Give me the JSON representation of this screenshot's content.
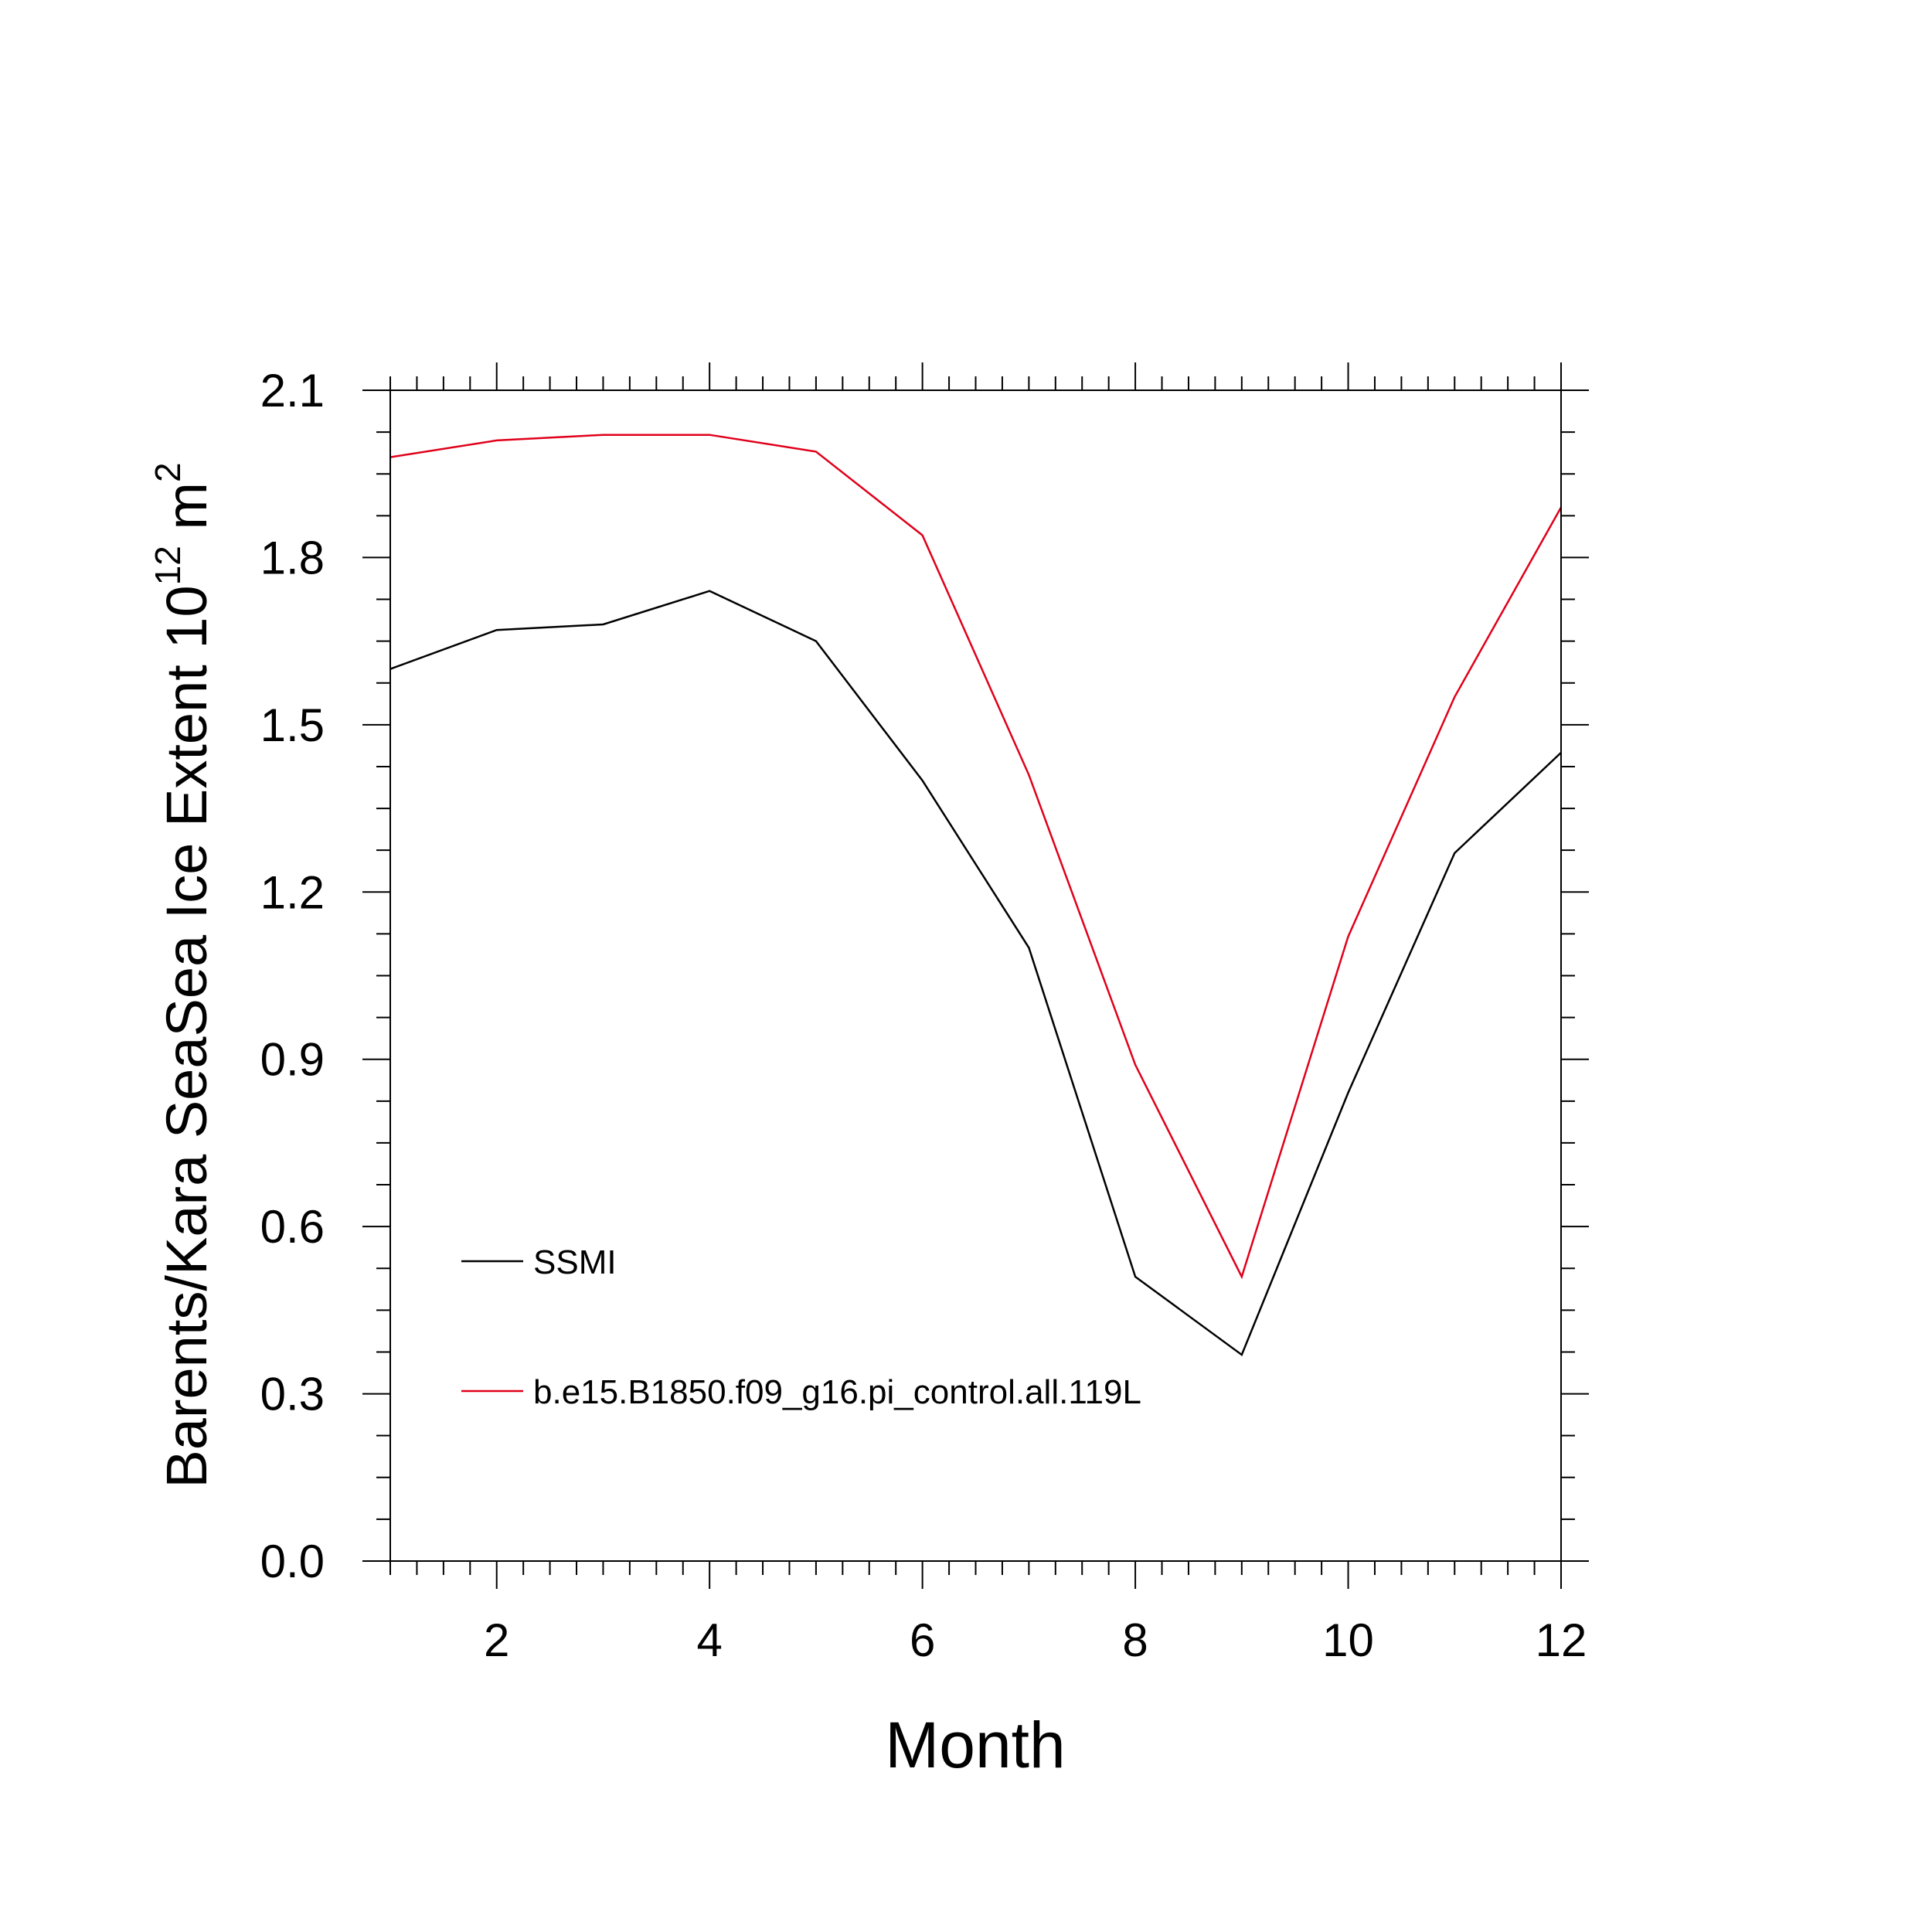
{
  "chart_data": {
    "type": "line",
    "xlabel": "Month",
    "ylabel": {
      "text": "Barents/Kara SeaSea Ice Extent 10",
      "exponent": "12",
      "unit": " m",
      "unit_exponent": "2"
    },
    "xlim": [
      1,
      12
    ],
    "ylim": [
      0.0,
      2.1
    ],
    "xticks": [
      2,
      4,
      6,
      8,
      10,
      12
    ],
    "xtick_labels": [
      "2",
      "4",
      "6",
      "8",
      "10",
      "12"
    ],
    "yticks": [
      0.0,
      0.3,
      0.6,
      0.9,
      1.2,
      1.5,
      1.8,
      2.1
    ],
    "ytick_labels": [
      "0.0",
      "0.3",
      "0.6",
      "0.9",
      "1.2",
      "1.5",
      "1.8",
      "2.1"
    ],
    "x": [
      1,
      2,
      3,
      4,
      5,
      6,
      7,
      8,
      9,
      10,
      11,
      12
    ],
    "series": [
      {
        "name": "SSMI",
        "color": "#000000",
        "values": [
          1.6,
          1.67,
          1.68,
          1.74,
          1.65,
          1.4,
          1.1,
          0.51,
          0.37,
          0.84,
          1.27,
          1.45
        ]
      },
      {
        "name": "b.e15.B1850.f09_g16.pi_control.all.119L",
        "color": "#e0001a",
        "values": [
          1.98,
          2.01,
          2.02,
          2.02,
          1.99,
          1.84,
          1.41,
          0.89,
          0.51,
          1.12,
          1.55,
          1.89
        ]
      }
    ],
    "grid": false,
    "legend_position": "lower-left, inside plot"
  }
}
